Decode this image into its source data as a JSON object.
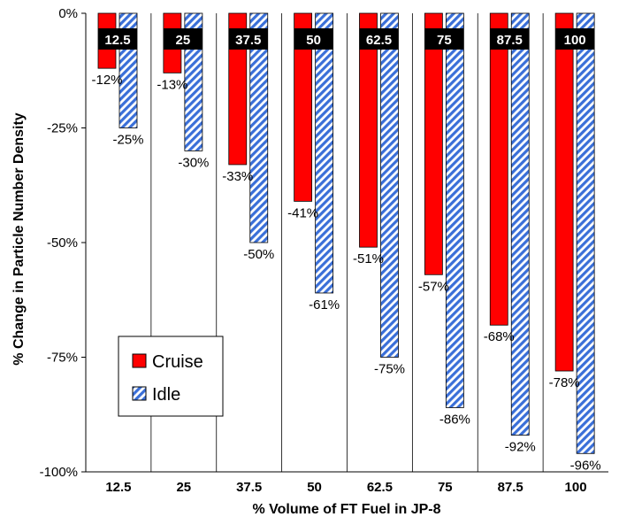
{
  "chart_data": {
    "type": "bar",
    "categories": [
      "12.5",
      "25",
      "37.5",
      "50",
      "62.5",
      "75",
      "87.5",
      "100"
    ],
    "series": [
      {
        "name": "Cruise",
        "color": "#ff0000",
        "values": [
          -12,
          -13,
          -33,
          -41,
          -51,
          -57,
          -68,
          -78
        ],
        "labels": [
          "-12%",
          "-13%",
          "-33%",
          "-41%",
          "-51%",
          "-57%",
          "-68%",
          "-78%"
        ]
      },
      {
        "name": "Idle",
        "color": "#3a6fd8",
        "pattern": "diagonal-hatch",
        "values": [
          -25,
          -30,
          -50,
          -61,
          -75,
          -86,
          -92,
          -96
        ],
        "labels": [
          "-25%",
          "-30%",
          "-50%",
          "-61%",
          "-75%",
          "-86%",
          "-92%",
          "-96%"
        ]
      }
    ],
    "xlabel": "% Volume of FT Fuel in JP-8",
    "ylabel": "% Change in Particle Number Density",
    "ylim": [
      -100,
      0
    ],
    "yticks": [
      "0%",
      "-25%",
      "-50%",
      "-75%",
      "-100%"
    ],
    "legend": "lower-left",
    "grid": "vertical category separators"
  }
}
